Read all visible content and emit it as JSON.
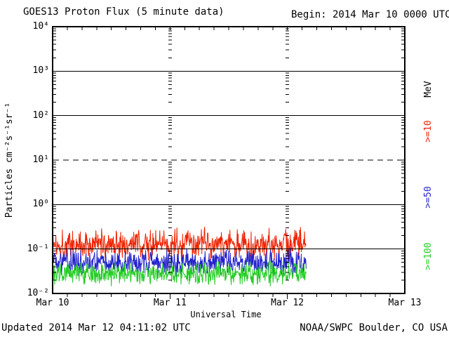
{
  "header": {
    "title": "GOES13 Proton Flux (5 minute data)",
    "begin": "Begin: 2014 Mar 10 0000 UTC"
  },
  "footer": {
    "updated": "Updated 2014 Mar 12 04:11:02 UTC",
    "credit": "NOAA/SWPC Boulder, CO USA"
  },
  "chart_data": {
    "type": "line",
    "title": "GOES13 Proton Flux (5 minute data)",
    "begin_annotation": "Begin: 2014 Mar 10 0000 UTC",
    "xlabel": "Universal Time",
    "ylabel": "Particles cm⁻²s⁻¹sr⁻¹",
    "unit_label": "MeV",
    "ylim": [
      0.01,
      10000
    ],
    "y_scale": "log",
    "y_tick_labels": [
      "10⁴",
      "10³",
      "10²",
      "10¹",
      "10⁰",
      "10⁻¹",
      "10⁻²"
    ],
    "y_tick_exponents": [
      4,
      3,
      2,
      1,
      0,
      -1,
      -2
    ],
    "x_tick_labels": [
      "Mar 10",
      "Mar 11",
      "Mar 12",
      "Mar 13"
    ],
    "x_range_days": 3,
    "minor_x_tick_hours": 3,
    "grid": {
      "solid_levels": [
        1000,
        100,
        1,
        0.1
      ],
      "dashed_levels": [
        10
      ],
      "day_gridline_style": "log-spaced dashes at Mar 11 and Mar 12"
    },
    "legend_position": "right-rotated",
    "cadence_minutes": 5,
    "data_start_day": 0,
    "data_end_day": 2.16,
    "series": [
      {
        "name": ">=10",
        "color": "#ee2200",
        "median_flux": 0.13,
        "flux_range": [
          0.07,
          0.35
        ],
        "log10_median": -0.89,
        "log10_amplitude": 0.4
      },
      {
        "name": ">=50",
        "color": "#2222cc",
        "median_flux": 0.05,
        "flux_range": [
          0.028,
          0.11
        ],
        "log10_median": -1.3,
        "log10_amplitude": 0.35
      },
      {
        "name": ">=100",
        "color": "#22cc22",
        "median_flux": 0.028,
        "flux_range": [
          0.015,
          0.055
        ],
        "log10_median": -1.55,
        "log10_amplitude": 0.3
      }
    ]
  },
  "colors": {
    "axis": "#000000",
    "background": "#ffffff",
    "text": "#000000"
  },
  "layout_note": "flux vs time, three integral proton channels, quiet background levels below 1 pfu"
}
